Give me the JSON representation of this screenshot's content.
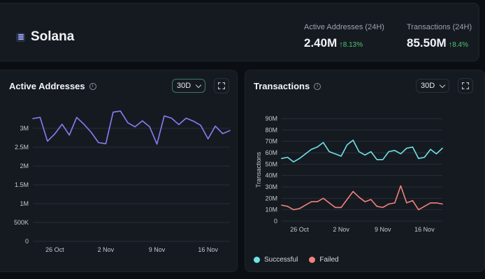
{
  "header": {
    "name": "Solana",
    "stats": [
      {
        "label": "Active Addresses (24H)",
        "value": "2.40M",
        "change": "8.13%",
        "arrow": "↑"
      },
      {
        "label": "Transactions (24H)",
        "value": "85.50M",
        "change": "8.4%",
        "arrow": "↑"
      }
    ]
  },
  "colors": {
    "accent_positive": "#4cc870",
    "active_addresses_line": "#8b7cf6",
    "successful_line": "#6fe3e8",
    "failed_line": "#f2837a"
  },
  "active_addresses": {
    "title": "Active Addresses",
    "range": "30D"
  },
  "transactions": {
    "title": "Transactions",
    "range": "30D"
  },
  "chart_data": [
    {
      "type": "line",
      "title": "Active Addresses",
      "xlabel": "",
      "ylabel": "",
      "ylim": [
        0,
        3500000
      ],
      "y_ticks": [
        0,
        500000,
        1000000,
        1500000,
        2000000,
        2500000,
        3000000
      ],
      "y_tick_labels": [
        "0",
        "500K",
        "1M",
        "1.5M",
        "2M",
        "2.5M",
        "3M"
      ],
      "x_ticks": [
        3,
        10,
        17,
        24
      ],
      "x_tick_labels": [
        "26 Oct",
        "2 Nov",
        "9 Nov",
        "16 Nov"
      ],
      "grid": true,
      "series": [
        {
          "name": "Active Addresses",
          "color": "#8b7cf6",
          "x": [
            0,
            1,
            2,
            3,
            4,
            5,
            6,
            7,
            8,
            9,
            10,
            11,
            12,
            13,
            14,
            15,
            16,
            17,
            18,
            19,
            20,
            21,
            22,
            23,
            24,
            25,
            26,
            27
          ],
          "values": [
            3260000,
            3290000,
            2660000,
            2850000,
            3110000,
            2820000,
            3290000,
            3110000,
            2890000,
            2620000,
            2590000,
            3430000,
            3460000,
            3150000,
            3040000,
            3200000,
            3040000,
            2580000,
            3330000,
            3270000,
            3100000,
            3270000,
            3190000,
            3080000,
            2720000,
            3060000,
            2860000,
            2940000
          ]
        }
      ]
    },
    {
      "type": "line",
      "title": "Transactions",
      "xlabel": "",
      "ylabel": "Transactions",
      "ylim": [
        0,
        90000000
      ],
      "y_ticks": [
        0,
        10000000,
        20000000,
        30000000,
        40000000,
        50000000,
        60000000,
        70000000,
        80000000,
        90000000
      ],
      "y_tick_labels": [
        "0",
        "10M",
        "20M",
        "30M",
        "40M",
        "50M",
        "60M",
        "70M",
        "80M",
        "90M"
      ],
      "x_ticks": [
        3,
        10,
        17,
        24
      ],
      "x_tick_labels": [
        "26 Oct",
        "2 Nov",
        "9 Nov",
        "16 Nov"
      ],
      "grid": true,
      "legend_position": "bottom-left",
      "series": [
        {
          "name": "Successful",
          "color": "#6fe3e8",
          "x": [
            0,
            1,
            2,
            3,
            4,
            5,
            6,
            7,
            8,
            9,
            10,
            11,
            12,
            13,
            14,
            15,
            16,
            17,
            18,
            19,
            20,
            21,
            22,
            23,
            24,
            25,
            26,
            27
          ],
          "values": [
            55000000,
            56000000,
            52000000,
            55000000,
            59000000,
            63000000,
            65000000,
            69000000,
            61000000,
            59000000,
            57000000,
            67000000,
            71000000,
            61000000,
            58000000,
            61000000,
            54000000,
            54000000,
            61000000,
            62000000,
            59000000,
            64000000,
            65000000,
            55000000,
            56000000,
            63000000,
            59000000,
            64000000
          ]
        },
        {
          "name": "Failed",
          "color": "#f2837a",
          "x": [
            0,
            1,
            2,
            3,
            4,
            5,
            6,
            7,
            8,
            9,
            10,
            11,
            12,
            13,
            14,
            15,
            16,
            17,
            18,
            19,
            20,
            21,
            22,
            23,
            24,
            25,
            26,
            27
          ],
          "values": [
            14000000,
            13000000,
            10000000,
            11000000,
            14000000,
            17000000,
            17000000,
            20000000,
            16000000,
            12000000,
            12000000,
            19000000,
            26000000,
            21000000,
            17000000,
            19000000,
            13000000,
            12000000,
            15000000,
            16000000,
            31000000,
            16000000,
            18000000,
            10000000,
            13000000,
            16000000,
            16000000,
            15000000
          ]
        }
      ]
    }
  ]
}
